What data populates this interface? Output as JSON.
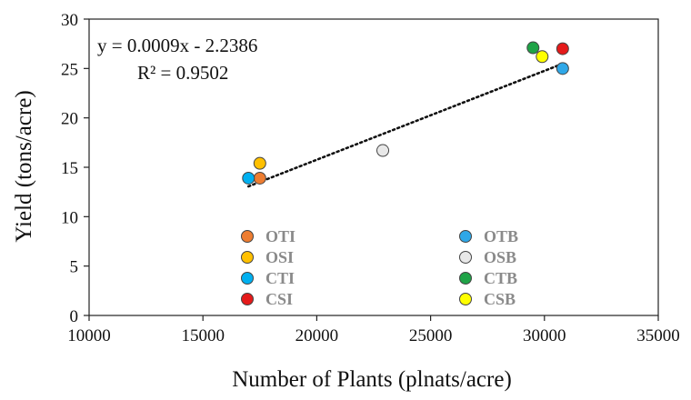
{
  "chart_data": {
    "type": "scatter",
    "xlabel": "Number of Plants (plnats/acre)",
    "ylabel": "Yield (tons/acre)",
    "xlim": [
      10000,
      35000
    ],
    "ylim": [
      0,
      30
    ],
    "x_ticks": [
      "10000",
      "15000",
      "20000",
      "25000",
      "30000",
      "35000"
    ],
    "y_ticks": [
      "0",
      "5",
      "10",
      "15",
      "20",
      "25",
      "30"
    ],
    "grid": false,
    "legend_position": "bottom-center",
    "trendline": {
      "style": "dotted",
      "equation": "y = 0.0009x - 2.2386",
      "r_squared": "R² = 0.9502",
      "x_range": [
        17000,
        30800
      ]
    },
    "series": [
      {
        "name": "OTI",
        "color": "#ED7D31",
        "x": [
          17500
        ],
        "y": [
          13.9
        ]
      },
      {
        "name": "OSI",
        "color": "#FFC000",
        "x": [
          17500
        ],
        "y": [
          15.4
        ]
      },
      {
        "name": "CTI",
        "color": "#00B0F0",
        "x": [
          17000
        ],
        "y": [
          13.9
        ]
      },
      {
        "name": "CSI",
        "color": "#E51A1A",
        "x": [
          30800
        ],
        "y": [
          27.0
        ]
      },
      {
        "name": "OTB",
        "color": "#2FA8E8",
        "x": [
          30800
        ],
        "y": [
          25.0
        ]
      },
      {
        "name": "OSB",
        "color": "#E8E8E8",
        "x": [
          22900
        ],
        "y": [
          16.7
        ]
      },
      {
        "name": "CTB",
        "color": "#1FA347",
        "x": [
          29500
        ],
        "y": [
          27.1
        ]
      },
      {
        "name": "CSB",
        "color": "#FFFF00",
        "x": [
          29900
        ],
        "y": [
          26.2
        ]
      }
    ]
  }
}
